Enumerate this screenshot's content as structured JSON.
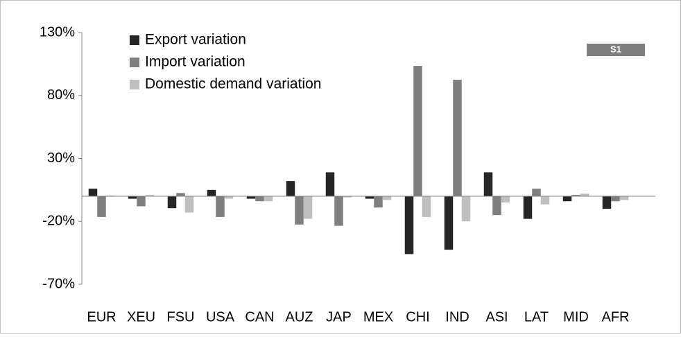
{
  "chart_data": {
    "type": "bar",
    "badge": "S1",
    "categories": [
      "EUR",
      "XEU",
      "FSU",
      "USA",
      "CAN",
      "AUZ",
      "JAP",
      "MEX",
      "CHI",
      "IND",
      "ASI",
      "LAT",
      "MID",
      "AFR"
    ],
    "series": [
      {
        "name": "Export variation",
        "color": "#262626",
        "values": [
          6,
          -2,
          -9.5,
          5,
          -2,
          12,
          19,
          -2,
          -46,
          -42.5,
          19,
          -18,
          -4,
          -10
        ]
      },
      {
        "name": "Import variation",
        "color": "#7f7f7f",
        "values": [
          -16.5,
          -8,
          2.5,
          -16.5,
          -4,
          -22.5,
          -23.5,
          -9,
          103.5,
          92.5,
          -15,
          6,
          1,
          -4
        ]
      },
      {
        "name": "Domestic demand variation",
        "color": "#bfbfbf",
        "values": [
          0.5,
          1,
          -13,
          -2,
          -4,
          -18,
          -1,
          -3,
          -16.5,
          -20,
          -5,
          -6.5,
          2,
          -3
        ]
      }
    ],
    "ylim": [
      -70,
      130
    ],
    "yticks": [
      {
        "value": -70,
        "label": "-70%"
      },
      {
        "value": -20,
        "label": "-20%"
      },
      {
        "value": 30,
        "label": "30%"
      },
      {
        "value": 80,
        "label": "80%"
      },
      {
        "value": 130,
        "label": "130%"
      }
    ],
    "grid": false
  }
}
